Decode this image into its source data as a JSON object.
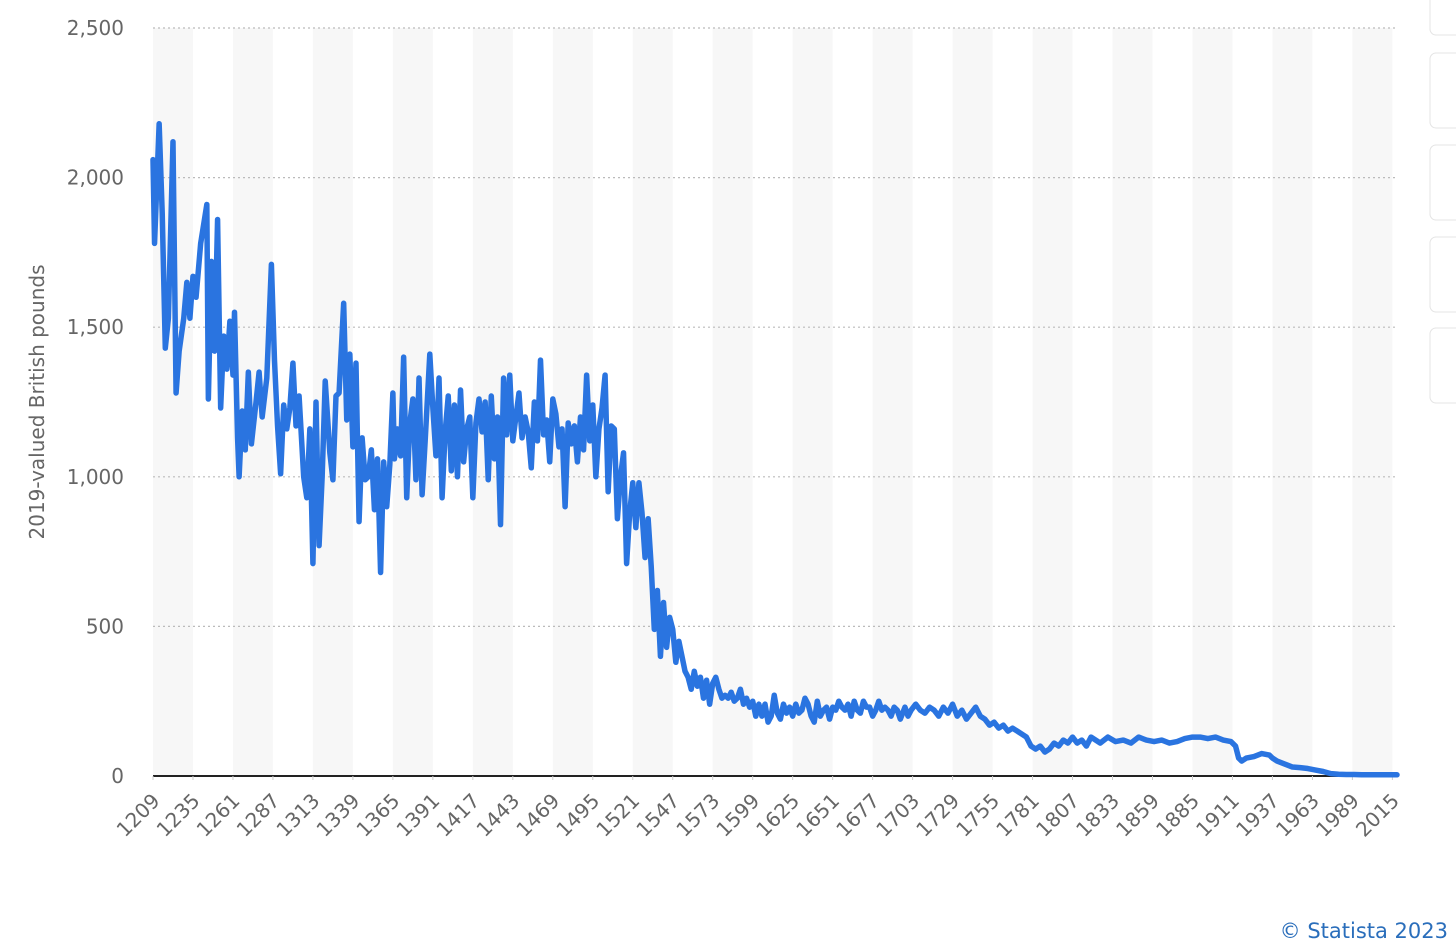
{
  "chart_data": {
    "type": "line",
    "y_label": "2019-valued British pounds",
    "credit": "© Statista 2023",
    "color": "#2a74e0",
    "grid": true,
    "xlim": [
      1209,
      2018
    ],
    "xticks": [
      1209,
      1235,
      1261,
      1287,
      1313,
      1339,
      1365,
      1391,
      1417,
      1443,
      1469,
      1495,
      1521,
      1547,
      1573,
      1599,
      1625,
      1651,
      1677,
      1703,
      1729,
      1755,
      1781,
      1807,
      1833,
      1859,
      1885,
      1911,
      1937,
      1963,
      1989,
      2015
    ],
    "ylim": [
      0,
      2500
    ],
    "yticks": [
      0,
      500,
      {
        "value": 1000,
        "label": "1,000"
      },
      {
        "value": 1500,
        "label": "1,500"
      },
      {
        "value": 2000,
        "label": "2,000"
      },
      {
        "value": 2500,
        "label": "2,500"
      }
    ],
    "x": [
      1209,
      1210,
      1213,
      1215,
      1217,
      1219,
      1222,
      1224,
      1226,
      1229,
      1231,
      1233,
      1235,
      1237,
      1240,
      1244,
      1245,
      1247,
      1249,
      1251,
      1253,
      1255,
      1257,
      1259,
      1261,
      1262,
      1264,
      1265,
      1267,
      1269,
      1271,
      1273,
      1276,
      1278,
      1280,
      1283,
      1286,
      1288,
      1290,
      1292,
      1294,
      1296,
      1298,
      1300,
      1302,
      1304,
      1307,
      1309,
      1311,
      1313,
      1315,
      1317,
      1319,
      1321,
      1324,
      1326,
      1328,
      1330,
      1333,
      1335,
      1337,
      1339,
      1341,
      1343,
      1345,
      1347,
      1349,
      1351,
      1353,
      1355,
      1357,
      1359,
      1361,
      1363,
      1365,
      1366,
      1368,
      1370,
      1372,
      1374,
      1376,
      1378,
      1380,
      1382,
      1384,
      1386,
      1389,
      1391,
      1393,
      1395,
      1397,
      1399,
      1401,
      1403,
      1405,
      1407,
      1409,
      1411,
      1413,
      1415,
      1417,
      1419,
      1421,
      1423,
      1425,
      1427,
      1429,
      1431,
      1433,
      1435,
      1437,
      1439,
      1441,
      1443,
      1445,
      1447,
      1449,
      1451,
      1453,
      1455,
      1457,
      1459,
      1461,
      1463,
      1465,
      1467,
      1469,
      1471,
      1473,
      1475,
      1477,
      1479,
      1481,
      1483,
      1485,
      1487,
      1489,
      1491,
      1493,
      1495,
      1497,
      1499,
      1501,
      1503,
      1505,
      1507,
      1509,
      1511,
      1513,
      1515,
      1517,
      1519,
      1521,
      1523,
      1525,
      1527,
      1529,
      1531,
      1533,
      1535,
      1537,
      1539,
      1541,
      1543,
      1545,
      1547,
      1549,
      1551,
      1553,
      1555,
      1557,
      1559,
      1561,
      1563,
      1565,
      1567,
      1569,
      1571,
      1573,
      1575,
      1577,
      1579,
      1581,
      1583,
      1585,
      1587,
      1589,
      1591,
      1593,
      1595,
      1597,
      1599,
      1601,
      1603,
      1605,
      1607,
      1609,
      1611,
      1613,
      1615,
      1617,
      1619,
      1621,
      1623,
      1625,
      1627,
      1629,
      1631,
      1633,
      1635,
      1637,
      1639,
      1641,
      1643,
      1645,
      1647,
      1649,
      1651,
      1653,
      1655,
      1657,
      1659,
      1661,
      1663,
      1665,
      1667,
      1669,
      1671,
      1673,
      1675,
      1677,
      1679,
      1681,
      1683,
      1685,
      1687,
      1689,
      1691,
      1693,
      1695,
      1698,
      1700,
      1702,
      1705,
      1708,
      1711,
      1714,
      1717,
      1720,
      1723,
      1726,
      1729,
      1732,
      1735,
      1738,
      1741,
      1744,
      1747,
      1750,
      1753,
      1756,
      1759,
      1762,
      1765,
      1768,
      1771,
      1774,
      1777,
      1780,
      1783,
      1786,
      1789,
      1792,
      1795,
      1798,
      1801,
      1804,
      1807,
      1810,
      1813,
      1816,
      1819,
      1822,
      1825,
      1830,
      1835,
      1840,
      1845,
      1850,
      1855,
      1860,
      1865,
      1870,
      1875,
      1880,
      1885,
      1890,
      1895,
      1900,
      1905,
      1910,
      1913,
      1915,
      1917,
      1920,
      1925,
      1930,
      1935,
      1937,
      1940,
      1945,
      1950,
      1955,
      1960,
      1965,
      1970,
      1975,
      1980,
      1985,
      1990,
      1995,
      2000,
      2005,
      2010,
      2015,
      2018
    ],
    "values": [
      2060,
      1780,
      2180,
      1880,
      1430,
      1530,
      2120,
      1280,
      1420,
      1530,
      1650,
      1530,
      1670,
      1600,
      1780,
      1910,
      1260,
      1720,
      1420,
      1860,
      1230,
      1470,
      1360,
      1520,
      1340,
      1550,
      1130,
      1000,
      1220,
      1090,
      1350,
      1110,
      1250,
      1350,
      1200,
      1330,
      1710,
      1390,
      1170,
      1010,
      1240,
      1160,
      1230,
      1380,
      1170,
      1270,
      1000,
      930,
      1160,
      710,
      1250,
      770,
      1000,
      1320,
      1080,
      990,
      1270,
      1280,
      1580,
      1190,
      1410,
      1100,
      1380,
      850,
      1130,
      990,
      1000,
      1090,
      890,
      1060,
      680,
      1050,
      900,
      1040,
      1280,
      1060,
      1160,
      1070,
      1400,
      930,
      1180,
      1260,
      990,
      1330,
      940,
      1120,
      1410,
      1230,
      1070,
      1330,
      930,
      1150,
      1270,
      1020,
      1240,
      1000,
      1290,
      1050,
      1160,
      1200,
      930,
      1180,
      1260,
      1150,
      1250,
      990,
      1270,
      1060,
      1200,
      840,
      1330,
      1140,
      1340,
      1120,
      1200,
      1280,
      1130,
      1200,
      1150,
      1030,
      1250,
      1120,
      1390,
      1140,
      1190,
      1050,
      1260,
      1210,
      1100,
      1160,
      900,
      1180,
      1110,
      1170,
      1050,
      1200,
      1090,
      1340,
      1120,
      1240,
      1000,
      1160,
      1230,
      1340,
      950,
      1170,
      1160,
      860,
      1000,
      1080,
      710,
      880,
      980,
      830,
      980,
      880,
      730,
      860,
      700,
      490,
      620,
      400,
      580,
      430,
      530,
      490,
      380,
      450,
      400,
      350,
      330,
      290,
      350,
      300,
      330,
      260,
      320,
      240,
      310,
      330,
      290,
      260,
      270,
      260,
      280,
      250,
      260,
      290,
      240,
      260,
      230,
      250,
      200,
      240,
      200,
      240,
      180,
      200,
      270,
      210,
      190,
      240,
      210,
      230,
      200,
      240,
      210,
      220,
      260,
      240,
      200,
      180,
      250,
      200,
      220,
      230,
      190,
      230,
      220,
      250,
      230,
      220,
      240,
      200,
      250,
      220,
      210,
      250,
      230,
      230,
      200,
      220,
      250,
      220,
      230,
      220,
      200,
      230,
      220,
      190,
      230,
      200,
      220,
      240,
      220,
      210,
      230,
      220,
      200,
      230,
      210,
      240,
      200,
      220,
      190,
      210,
      230,
      200,
      190,
      170,
      180,
      160,
      170,
      150,
      160,
      150,
      140,
      130,
      100,
      90,
      100,
      80,
      90,
      110,
      100,
      120,
      110,
      130,
      110,
      120,
      100,
      130,
      120,
      110,
      130,
      115,
      120,
      110,
      130,
      120,
      115,
      120,
      110,
      115,
      125,
      130,
      130,
      125,
      130,
      120,
      115,
      100,
      60,
      50,
      60,
      65,
      75,
      70,
      60,
      50,
      40,
      30,
      28,
      25,
      20,
      15,
      8,
      6,
      5,
      5,
      4,
      4,
      4,
      4,
      4,
      4
    ]
  }
}
